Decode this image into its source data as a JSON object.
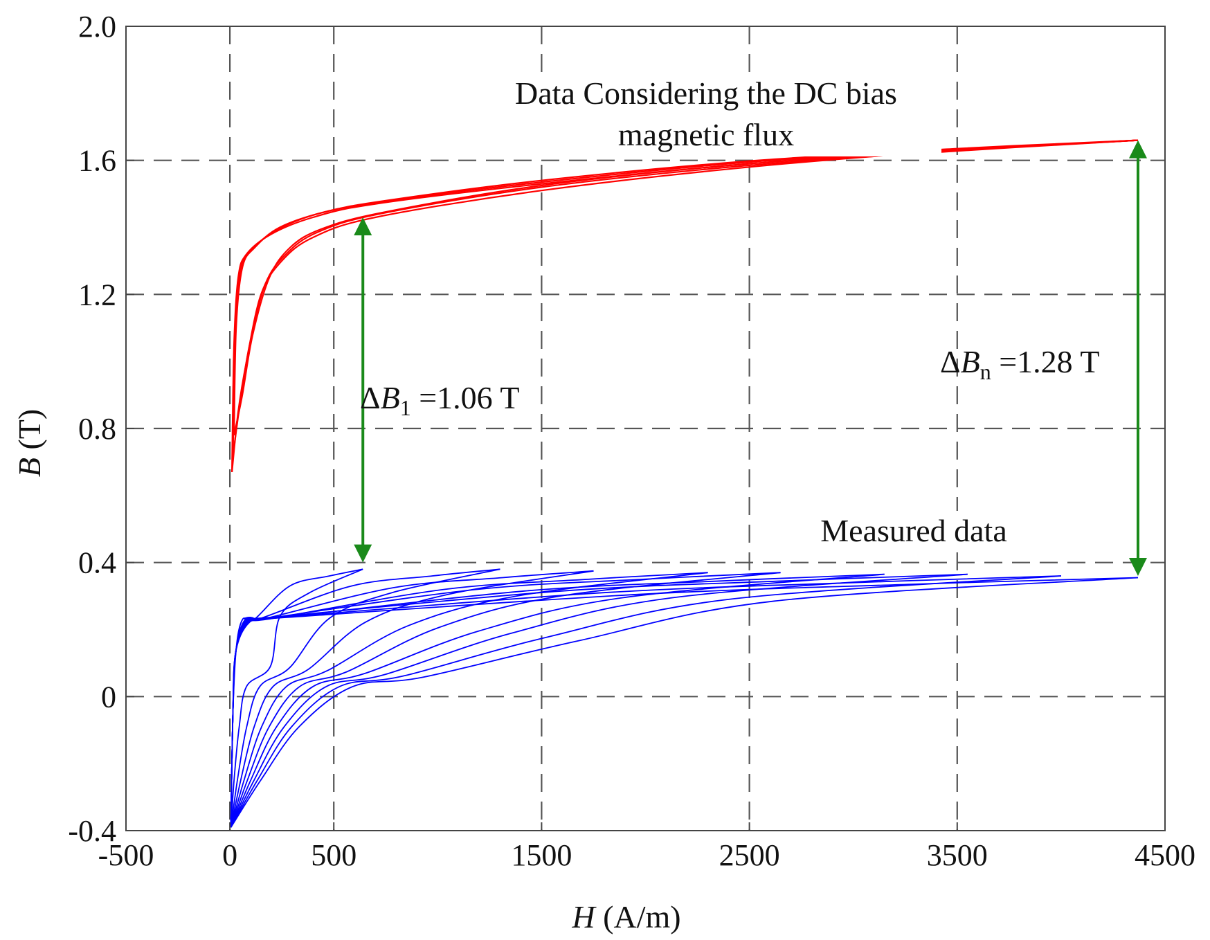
{
  "chart_data": {
    "type": "line",
    "title": "",
    "xlabel": {
      "var": "H",
      "unit": " (A/m)"
    },
    "ylabel": {
      "var": "B",
      "unit": " (T)"
    },
    "xlim": [
      -500,
      4500
    ],
    "ylim": [
      -0.4,
      2.0
    ],
    "x_ticks": [
      -500,
      0,
      500,
      1500,
      2500,
      3500,
      4500
    ],
    "x_tick_labels": [
      "-500",
      "0",
      "500",
      "1500",
      "2500",
      "3500",
      "4500"
    ],
    "x_gridlines": [
      0,
      500,
      1500,
      2500,
      3500
    ],
    "y_ticks": [
      -0.4,
      0,
      0.4,
      0.8,
      1.2,
      1.6,
      2.0
    ],
    "y_tick_labels": [
      "-0.4",
      "0",
      "0.4",
      "0.8",
      "1.2",
      "1.6",
      "2.0"
    ],
    "y_gridlines": [
      0,
      0.4,
      0.8,
      1.2,
      1.6
    ],
    "grid": true,
    "grid_style": "dashed",
    "colors": {
      "dc_bias": "#ff0000",
      "measured": "#0000ff",
      "arrow": "#1a8a1a",
      "grid": "#555555",
      "axis": "#444444"
    },
    "series": [
      {
        "name": "Data Considering the DC bias magnetic flux",
        "color": "#ff0000",
        "loops": [
          {
            "b_min": 0.67,
            "h_max": 4370,
            "b_max": 1.66,
            "upper": [
              [
                10,
                0.67
              ],
              [
                20,
                1.05
              ],
              [
                40,
                1.25
              ],
              [
                80,
                1.32
              ],
              [
                200,
                1.38
              ],
              [
                400,
                1.43
              ],
              [
                700,
                1.47
              ],
              [
                1500,
                1.53
              ],
              [
                2500,
                1.59
              ],
              [
                3500,
                1.63
              ],
              [
                4370,
                1.66
              ]
            ],
            "lower": [
              [
                10,
                0.67
              ],
              [
                40,
                0.85
              ],
              [
                80,
                1.0
              ],
              [
                150,
                1.2
              ],
              [
                250,
                1.3
              ],
              [
                400,
                1.37
              ],
              [
                700,
                1.43
              ],
              [
                1500,
                1.51
              ],
              [
                2500,
                1.58
              ],
              [
                3500,
                1.63
              ],
              [
                4370,
                1.66
              ]
            ]
          },
          {
            "b_min": 0.72,
            "h_max": 4370,
            "b_max": 1.66,
            "upper": [
              [
                15,
                0.72
              ],
              [
                25,
                1.08
              ],
              [
                50,
                1.27
              ],
              [
                100,
                1.33
              ],
              [
                220,
                1.39
              ],
              [
                420,
                1.44
              ],
              [
                720,
                1.475
              ],
              [
                1500,
                1.535
              ],
              [
                2500,
                1.595
              ],
              [
                3500,
                1.632
              ],
              [
                4370,
                1.66
              ]
            ],
            "lower": [
              [
                15,
                0.72
              ],
              [
                50,
                0.88
              ],
              [
                95,
                1.05
              ],
              [
                170,
                1.23
              ],
              [
                270,
                1.32
              ],
              [
                420,
                1.385
              ],
              [
                720,
                1.44
              ],
              [
                1500,
                1.52
              ],
              [
                2500,
                1.585
              ],
              [
                3500,
                1.628
              ],
              [
                4370,
                1.66
              ]
            ]
          },
          {
            "b_min": 0.78,
            "h_max": 4370,
            "b_max": 1.66,
            "upper": [
              [
                20,
                0.78
              ],
              [
                30,
                1.1
              ],
              [
                60,
                1.28
              ],
              [
                120,
                1.34
              ],
              [
                240,
                1.4
              ],
              [
                450,
                1.445
              ],
              [
                750,
                1.48
              ],
              [
                1500,
                1.54
              ],
              [
                2500,
                1.598
              ],
              [
                3500,
                1.635
              ],
              [
                4370,
                1.66
              ]
            ],
            "lower": [
              [
                20,
                0.78
              ],
              [
                60,
                0.9
              ],
              [
                110,
                1.08
              ],
              [
                190,
                1.25
              ],
              [
                290,
                1.34
              ],
              [
                440,
                1.395
              ],
              [
                740,
                1.445
              ],
              [
                1500,
                1.525
              ],
              [
                2500,
                1.59
              ],
              [
                3500,
                1.63
              ],
              [
                4370,
                1.66
              ]
            ]
          }
        ]
      },
      {
        "name": "Measured data",
        "color": "#0000ff",
        "loops": [
          {
            "h_max": 640,
            "b_max": 0.38
          },
          {
            "h_max": 1300,
            "b_max": 0.38
          },
          {
            "h_max": 1750,
            "b_max": 0.375
          },
          {
            "h_max": 2300,
            "b_max": 0.37
          },
          {
            "h_max": 2650,
            "b_max": 0.37
          },
          {
            "h_max": 3150,
            "b_max": 0.365
          },
          {
            "h_max": 3550,
            "b_max": 0.365
          },
          {
            "h_max": 4000,
            "b_max": 0.36
          },
          {
            "h_max": 4370,
            "b_max": 0.355
          }
        ],
        "b_min": -0.39
      }
    ],
    "annotations": [
      {
        "text_lines": [
          "Data Considering the DC bias",
          "magnetic flux"
        ],
        "anchor_data": [
          2300,
          1.73
        ]
      },
      {
        "text": "Measured data",
        "anchor_data": [
          3150,
          0.46
        ]
      },
      {
        "symbol": "Δ",
        "var": "B",
        "sub": "1",
        "value": " =1.06 T",
        "arrow_h": 640,
        "arrow_b": [
          0.4,
          1.43
        ]
      },
      {
        "symbol": "Δ",
        "var": "B",
        "sub": "n",
        "value": " =1.28 T",
        "arrow_h": 4370,
        "arrow_b": [
          0.36,
          1.66
        ]
      }
    ]
  }
}
